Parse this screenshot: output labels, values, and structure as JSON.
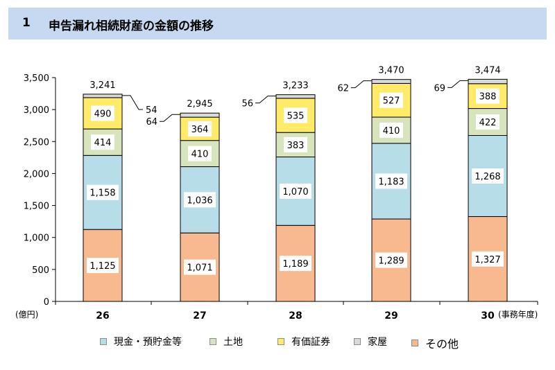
{
  "header": {
    "number": "1",
    "title": "申告漏れ相続財産の金額の推移"
  },
  "chart_data": {
    "type": "bar",
    "stacked": true,
    "y_unit_label": "(億円)",
    "x_unit_label": "(事務年度)",
    "ylim": [
      0,
      3500
    ],
    "yticks": [
      "0",
      "500",
      "1,000",
      "1,500",
      "2,000",
      "2,500",
      "3,000",
      "3,500"
    ],
    "categories": [
      "26",
      "27",
      "28",
      "29",
      "30"
    ],
    "totals": [
      "3,241",
      "2,945",
      "3,233",
      "3,470",
      "3,474"
    ],
    "series": [
      {
        "name": "その他",
        "color": "#f8b98e",
        "values": [
          1125,
          1071,
          1189,
          1289,
          1327
        ],
        "labels": [
          "1,125",
          "1,071",
          "1,189",
          "1,289",
          "1,327"
        ]
      },
      {
        "name": "現金・預貯金等",
        "color": "#b7dde8",
        "values": [
          1158,
          1036,
          1070,
          1183,
          1268
        ],
        "labels": [
          "1,158",
          "1,036",
          "1,070",
          "1,183",
          "1,268"
        ]
      },
      {
        "name": "土地",
        "color": "#d7e4bc",
        "values": [
          414,
          410,
          383,
          410,
          422
        ],
        "labels": [
          "414",
          "410",
          "383",
          "410",
          "422"
        ]
      },
      {
        "name": "有価証券",
        "color": "#ffeb67",
        "values": [
          490,
          364,
          535,
          527,
          388
        ],
        "labels": [
          "490",
          "364",
          "535",
          "527",
          "388"
        ]
      },
      {
        "name": "家屋",
        "color": "#d9d9d9",
        "values": [
          54,
          64,
          56,
          62,
          69
        ],
        "labels": [
          "54",
          "64",
          "56",
          "62",
          "69"
        ]
      }
    ],
    "legend": {
      "placement": "bottom",
      "order": [
        "現金・預貯金等",
        "土地",
        "有価証券",
        "家屋",
        "その他"
      ]
    }
  }
}
